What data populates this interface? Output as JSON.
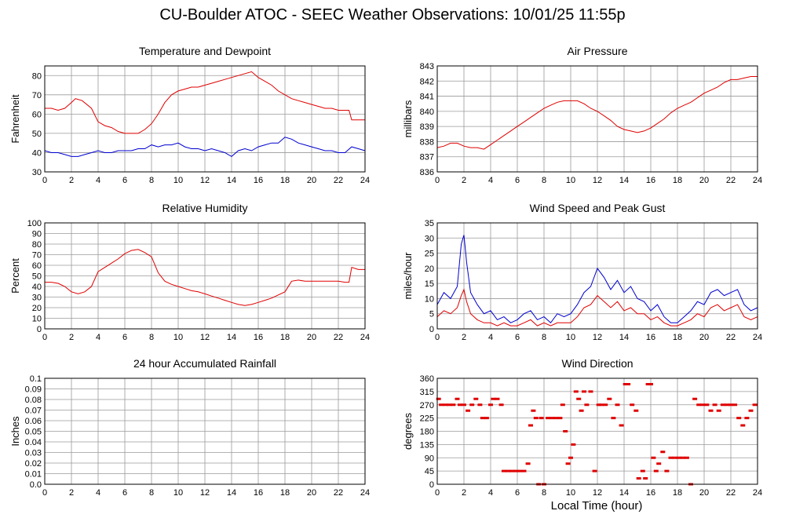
{
  "page": {
    "title": "CU-Boulder ATOC - SEEC Weather Observations: 10/01/25 11:55p",
    "bottom_xlabel": "Local Time (hour)"
  },
  "chart_data": [
    {
      "id": "temp",
      "type": "line",
      "title": "Temperature and Dewpoint",
      "ylabel": "Fahrenheit",
      "xlabel": "",
      "xlim": [
        0,
        24
      ],
      "ylim": [
        30,
        85
      ],
      "yticks": [
        30,
        40,
        50,
        60,
        70,
        80
      ],
      "xticks": [
        0,
        2,
        4,
        6,
        8,
        10,
        12,
        14,
        16,
        18,
        20,
        22,
        24
      ],
      "grid": true,
      "series": [
        {
          "color": "#e00000",
          "style": "line",
          "x": [
            0,
            0.5,
            1,
            1.5,
            2,
            2.3,
            2.8,
            3.5,
            4,
            4.5,
            5,
            5.5,
            6,
            6.5,
            7,
            7.5,
            8,
            8.5,
            9,
            9.5,
            10,
            10.5,
            11,
            11.5,
            12,
            12.5,
            13,
            13.5,
            14,
            14.5,
            15,
            15.5,
            16,
            16.5,
            17,
            17.5,
            18,
            18.5,
            19,
            19.5,
            20,
            20.5,
            21,
            21.5,
            22,
            22.5,
            22.8,
            23,
            23.5,
            24
          ],
          "y": [
            63,
            63,
            62,
            63,
            66,
            68,
            67,
            63,
            56,
            54,
            53,
            51,
            50,
            50,
            50,
            52,
            55,
            60,
            66,
            70,
            72,
            73,
            74,
            74,
            75,
            76,
            77,
            78,
            79,
            80,
            81,
            82,
            79,
            77,
            75,
            72,
            70,
            68,
            67,
            66,
            65,
            64,
            63,
            63,
            62,
            62,
            62,
            57,
            57,
            57
          ]
        },
        {
          "color": "#0000d0",
          "style": "line",
          "x": [
            0,
            0.5,
            1,
            1.5,
            2,
            2.5,
            3,
            3.5,
            4,
            4.5,
            5,
            5.5,
            6,
            6.5,
            7,
            7.5,
            8,
            8.5,
            9,
            9.5,
            10,
            10.5,
            11,
            11.5,
            12,
            12.5,
            13,
            13.5,
            14,
            14.5,
            15,
            15.5,
            16,
            16.5,
            17,
            17.5,
            18,
            18.5,
            19,
            19.5,
            20,
            20.5,
            21,
            21.5,
            22,
            22.5,
            23,
            23.5,
            24
          ],
          "y": [
            41,
            40,
            40,
            39,
            38,
            38,
            39,
            40,
            41,
            40,
            40,
            41,
            41,
            41,
            42,
            42,
            44,
            43,
            44,
            44,
            45,
            43,
            42,
            42,
            41,
            42,
            41,
            40,
            38,
            41,
            42,
            41,
            43,
            44,
            45,
            45,
            48,
            47,
            45,
            44,
            43,
            42,
            41,
            41,
            40,
            40,
            43,
            42,
            41
          ]
        }
      ]
    },
    {
      "id": "pressure",
      "type": "line",
      "title": "Air Pressure",
      "ylabel": "millibars",
      "xlabel": "",
      "xlim": [
        0,
        24
      ],
      "ylim": [
        836,
        843
      ],
      "yticks": [
        836,
        837,
        838,
        839,
        840,
        841,
        842,
        843
      ],
      "xticks": [
        0,
        2,
        4,
        6,
        8,
        10,
        12,
        14,
        16,
        18,
        20,
        22,
        24
      ],
      "grid": true,
      "series": [
        {
          "color": "#e00000",
          "style": "line",
          "x": [
            0,
            0.5,
            1,
            1.5,
            2,
            2.5,
            3,
            3.5,
            4,
            4.5,
            5,
            5.5,
            6,
            6.5,
            7,
            7.5,
            8,
            8.5,
            9,
            9.5,
            10,
            10.5,
            11,
            11.5,
            12,
            12.5,
            13,
            13.5,
            14,
            14.5,
            15,
            15.5,
            16,
            16.5,
            17,
            17.5,
            18,
            18.5,
            19,
            19.5,
            20,
            20.5,
            21,
            21.5,
            22,
            22.5,
            23,
            23.5,
            24
          ],
          "y": [
            837.6,
            837.7,
            837.9,
            837.9,
            837.7,
            837.6,
            837.6,
            837.5,
            837.8,
            838.1,
            838.4,
            838.7,
            839.0,
            839.3,
            839.6,
            839.9,
            840.2,
            840.4,
            840.6,
            840.7,
            840.7,
            840.7,
            840.5,
            840.2,
            840.0,
            839.7,
            839.4,
            839.0,
            838.8,
            838.7,
            838.6,
            838.7,
            838.9,
            839.2,
            839.5,
            839.9,
            840.2,
            840.4,
            840.6,
            840.9,
            841.2,
            841.4,
            841.6,
            841.9,
            842.1,
            842.1,
            842.2,
            842.3,
            842.3
          ]
        }
      ]
    },
    {
      "id": "humidity",
      "type": "line",
      "title": "Relative Humidity",
      "ylabel": "Percent",
      "xlabel": "",
      "xlim": [
        0,
        24
      ],
      "ylim": [
        0,
        100
      ],
      "yticks": [
        0,
        10,
        20,
        30,
        40,
        50,
        60,
        70,
        80,
        90,
        100
      ],
      "xticks": [
        0,
        2,
        4,
        6,
        8,
        10,
        12,
        14,
        16,
        18,
        20,
        22,
        24
      ],
      "grid": true,
      "series": [
        {
          "color": "#e00000",
          "style": "line",
          "x": [
            0,
            0.5,
            1,
            1.5,
            2,
            2.5,
            3,
            3.5,
            4,
            4.5,
            5,
            5.5,
            6,
            6.5,
            7,
            7.5,
            8,
            8.5,
            9,
            9.5,
            10,
            10.5,
            11,
            11.5,
            12,
            12.5,
            13,
            13.5,
            14,
            14.5,
            15,
            15.5,
            16,
            16.5,
            17,
            17.5,
            18,
            18.5,
            19,
            19.5,
            20,
            20.5,
            21,
            21.5,
            22,
            22.5,
            22.8,
            23,
            23.5,
            24
          ],
          "y": [
            44,
            44,
            43,
            40,
            35,
            33,
            35,
            40,
            54,
            58,
            62,
            66,
            71,
            74,
            75,
            72,
            68,
            53,
            45,
            42,
            40,
            38,
            36,
            35,
            33,
            31,
            29,
            27,
            25,
            23,
            22,
            23,
            25,
            27,
            29,
            32,
            35,
            45,
            46,
            45,
            45,
            45,
            45,
            45,
            45,
            44,
            44,
            58,
            56,
            56
          ]
        }
      ]
    },
    {
      "id": "wind",
      "type": "line",
      "title": "Wind Speed and Peak Gust",
      "ylabel": "miles/hour",
      "xlabel": "",
      "xlim": [
        0,
        24
      ],
      "ylim": [
        0,
        35
      ],
      "yticks": [
        0,
        5,
        10,
        15,
        20,
        25,
        30,
        35
      ],
      "xticks": [
        0,
        2,
        4,
        6,
        8,
        10,
        12,
        14,
        16,
        18,
        20,
        22,
        24
      ],
      "grid": true,
      "series": [
        {
          "color": "#0000d0",
          "style": "line",
          "x": [
            0,
            0.5,
            1,
            1.5,
            1.8,
            2,
            2.2,
            2.5,
            3,
            3.5,
            4,
            4.5,
            5,
            5.5,
            6,
            6.5,
            7,
            7.5,
            8,
            8.5,
            9,
            9.5,
            10,
            10.5,
            11,
            11.5,
            12,
            12.5,
            13,
            13.5,
            14,
            14.5,
            15,
            15.5,
            16,
            16.5,
            17,
            17.5,
            18,
            18.5,
            19,
            19.5,
            20,
            20.5,
            21,
            21.5,
            22,
            22.5,
            23,
            23.5,
            24
          ],
          "y": [
            8,
            12,
            10,
            14,
            28,
            31,
            22,
            12,
            8,
            5,
            6,
            3,
            4,
            2,
            3,
            5,
            6,
            3,
            4,
            2,
            5,
            4,
            5,
            8,
            12,
            14,
            20,
            17,
            13,
            16,
            12,
            14,
            10,
            9,
            6,
            8,
            4,
            2,
            2,
            4,
            6,
            9,
            8,
            12,
            13,
            11,
            12,
            13,
            8,
            6,
            7
          ]
        },
        {
          "color": "#e00000",
          "style": "line",
          "x": [
            0,
            0.5,
            1,
            1.5,
            1.8,
            2,
            2.2,
            2.5,
            3,
            3.5,
            4,
            4.5,
            5,
            5.5,
            6,
            6.5,
            7,
            7.5,
            8,
            8.5,
            9,
            9.5,
            10,
            10.5,
            11,
            11.5,
            12,
            12.5,
            13,
            13.5,
            14,
            14.5,
            15,
            15.5,
            16,
            16.5,
            17,
            17.5,
            18,
            18.5,
            19,
            19.5,
            20,
            20.5,
            21,
            21.5,
            22,
            22.5,
            23,
            23.5,
            24
          ],
          "y": [
            4,
            6,
            5,
            7,
            11,
            13,
            9,
            5,
            3,
            2,
            2,
            1,
            2,
            1,
            1,
            2,
            3,
            1,
            2,
            1,
            2,
            2,
            2,
            4,
            7,
            8,
            11,
            9,
            7,
            9,
            6,
            7,
            5,
            5,
            3,
            4,
            2,
            1,
            1,
            2,
            3,
            5,
            4,
            7,
            8,
            6,
            7,
            8,
            4,
            3,
            4
          ]
        }
      ]
    },
    {
      "id": "rain",
      "type": "line",
      "title": "24 hour Accumulated Rainfall",
      "ylabel": "Inches",
      "xlabel": "",
      "xlim": [
        0,
        24
      ],
      "ylim": [
        0,
        0.1
      ],
      "yticks": [
        0.0,
        0.01,
        0.02,
        0.03,
        0.04,
        0.05,
        0.06,
        0.07,
        0.08,
        0.09,
        0.1
      ],
      "ytick_labels": [
        "0.0",
        "0.01",
        "0.02",
        "0.03",
        "0.04",
        "0.05",
        "0.06",
        "0.07",
        "0.08",
        "0.09",
        "0.1"
      ],
      "xticks": [
        0,
        2,
        4,
        6,
        8,
        10,
        12,
        14,
        16,
        18,
        20,
        22,
        24
      ],
      "grid": true,
      "series": [
        {
          "color": "#e00000",
          "style": "line",
          "x": [
            0,
            24
          ],
          "y": [
            0,
            0
          ]
        }
      ]
    },
    {
      "id": "direction",
      "type": "scatter",
      "title": "Wind Direction",
      "ylabel": "degrees",
      "xlabel": "Local Time (hour)",
      "xlim": [
        0,
        24
      ],
      "ylim": [
        0,
        360
      ],
      "yticks": [
        0,
        45,
        90,
        135,
        180,
        225,
        270,
        315,
        360
      ],
      "xticks": [
        0,
        2,
        4,
        6,
        8,
        10,
        12,
        14,
        16,
        18,
        20,
        22,
        24
      ],
      "grid": true,
      "series": [
        {
          "color": "#e00000",
          "style": "points",
          "x": [
            0.1,
            0.3,
            0.6,
            0.9,
            1.2,
            1.5,
            1.7,
            2.0,
            2.3,
            2.6,
            2.9,
            3.2,
            3.4,
            3.7,
            4.0,
            4.2,
            4.5,
            4.8,
            5.0,
            5.3,
            5.6,
            5.9,
            6.2,
            6.5,
            6.8,
            7.0,
            7.2,
            7.4,
            7.6,
            7.8,
            8.0,
            8.3,
            8.6,
            8.9,
            9.2,
            9.4,
            9.6,
            9.8,
            10.0,
            10.2,
            10.4,
            10.6,
            10.8,
            11.0,
            11.2,
            11.5,
            11.8,
            12.1,
            12.3,
            12.6,
            12.9,
            13.2,
            13.5,
            13.8,
            14.1,
            14.3,
            14.6,
            14.9,
            15.1,
            15.4,
            15.6,
            15.8,
            16.0,
            16.2,
            16.4,
            16.6,
            16.9,
            17.2,
            17.5,
            17.8,
            18.1,
            18.4,
            18.7,
            19.0,
            19.3,
            19.6,
            19.9,
            20.2,
            20.5,
            20.8,
            21.1,
            21.4,
            21.7,
            22.0,
            22.3,
            22.6,
            22.9,
            23.2,
            23.5,
            23.8
          ],
          "y": [
            290,
            270,
            270,
            270,
            270,
            290,
            270,
            270,
            250,
            270,
            290,
            270,
            225,
            225,
            270,
            290,
            290,
            270,
            45,
            45,
            45,
            45,
            45,
            45,
            70,
            200,
            250,
            225,
            0,
            225,
            0,
            225,
            225,
            225,
            225,
            270,
            180,
            70,
            90,
            135,
            315,
            290,
            250,
            315,
            270,
            315,
            45,
            270,
            270,
            270,
            290,
            225,
            270,
            200,
            340,
            340,
            270,
            250,
            20,
            45,
            20,
            340,
            340,
            90,
            45,
            70,
            110,
            45,
            90,
            90,
            90,
            90,
            90,
            0,
            290,
            270,
            270,
            270,
            250,
            270,
            250,
            270,
            270,
            270,
            270,
            225,
            200,
            225,
            250,
            270
          ]
        }
      ]
    }
  ]
}
